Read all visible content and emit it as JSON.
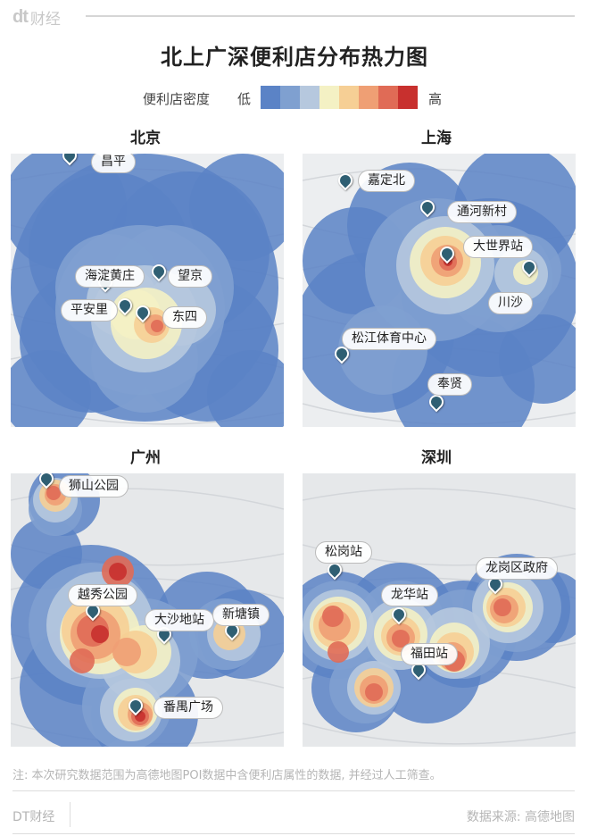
{
  "brand": {
    "logo": "dt",
    "name": "财经"
  },
  "title": "北上广深便利店分布热力图",
  "legend": {
    "label": "便利店密度",
    "low": "低",
    "high": "高",
    "colors": [
      "#5b83c6",
      "#7fa0d0",
      "#b6c8de",
      "#f4f1c4",
      "#f6cf95",
      "#ef9f74",
      "#e06b56",
      "#c8302e"
    ]
  },
  "maps": [
    {
      "city": "北京",
      "base": "#eceef0",
      "landmarks": [
        {
          "name": "昌平",
          "dx": 24,
          "dy": -13
        },
        {
          "name": "海淀黄庄",
          "dx": -34,
          "dy": -27
        },
        {
          "name": "望京",
          "dx": 10,
          "dy": -15
        },
        {
          "name": "平安里",
          "dx": -72,
          "dy": -15
        },
        {
          "name": "东四",
          "dx": 22,
          "dy": -15
        }
      ]
    },
    {
      "city": "上海",
      "base": "#eceef0",
      "landmarks": [
        {
          "name": "嘉定北",
          "dx": 14,
          "dy": -20
        },
        {
          "name": "通河新村",
          "dx": 22,
          "dy": -15
        },
        {
          "name": "大世界站",
          "dx": 18,
          "dy": -28
        },
        {
          "name": "川沙",
          "dx": -46,
          "dy": 20
        },
        {
          "name": "松江体育中心",
          "dx": 0,
          "dy": -37
        },
        {
          "name": "奉贤",
          "dx": -10,
          "dy": -40
        }
      ]
    },
    {
      "city": "广州",
      "base": "#e6e8ea",
      "landmarks": [
        {
          "name": "狮山公园",
          "dx": 14,
          "dy": -12
        },
        {
          "name": "越秀公园",
          "dx": -28,
          "dy": -38
        },
        {
          "name": "大沙地站",
          "dx": -22,
          "dy": -36
        },
        {
          "name": "新塘镇",
          "dx": -22,
          "dy": -38
        },
        {
          "name": "番禺广场",
          "dx": 20,
          "dy": -18
        }
      ]
    },
    {
      "city": "深圳",
      "base": "#e6e8ea",
      "landmarks": [
        {
          "name": "松岗站",
          "dx": -22,
          "dy": -40
        },
        {
          "name": "龙华站",
          "dx": -20,
          "dy": -42
        },
        {
          "name": "福田站",
          "dx": -20,
          "dy": -38
        },
        {
          "name": "龙岗区政府",
          "dx": -22,
          "dy": -38
        }
      ]
    }
  ],
  "note": "注: 本次研究数据范围为高德地图POI数据中含便利店属性的数据, 并经过人工筛查。",
  "footer": {
    "left": "DT财经",
    "right": "数据来源: 高德地图"
  }
}
